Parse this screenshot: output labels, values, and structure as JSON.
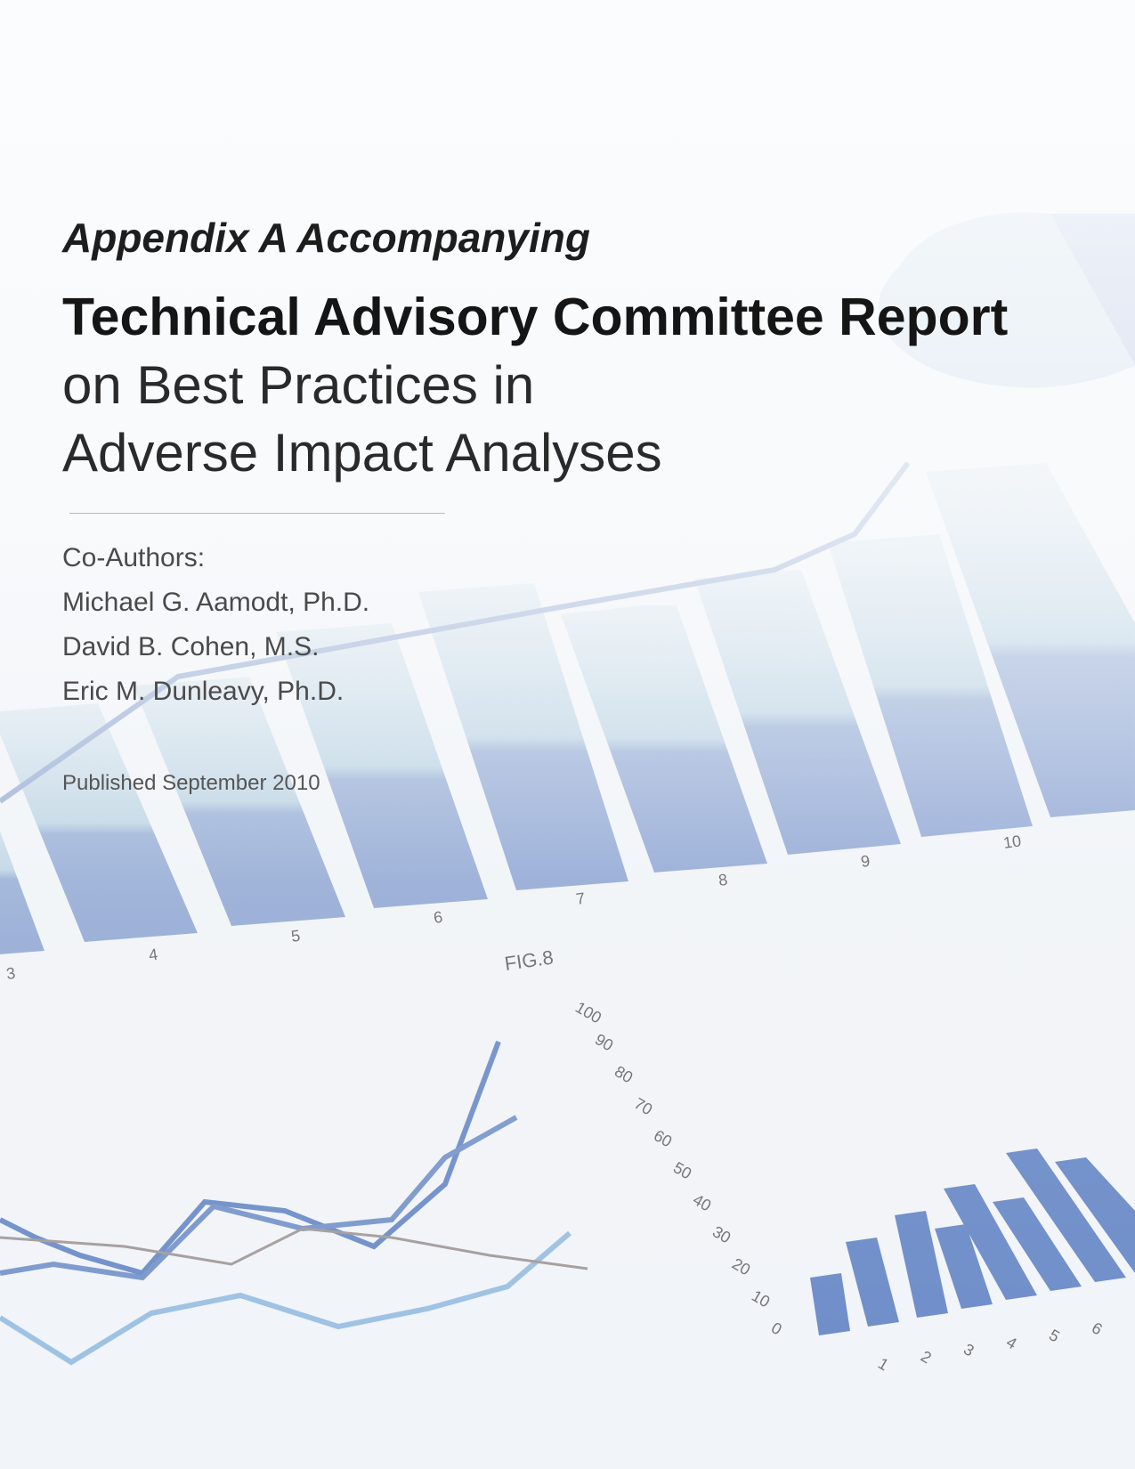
{
  "header": {
    "kicker": "Appendix A Accompanying",
    "title": "Technical Advisory Committee Report",
    "subtitle_lines": [
      "on Best Practices in",
      "Adverse Impact Analyses"
    ]
  },
  "authors": {
    "heading": "Co-Authors:",
    "names": [
      "Michael G. Aamodt, Ph.D.",
      "David B. Cohen, M.S.",
      "Eric M. Dunleavy, Ph.D."
    ]
  },
  "published": "Published September 2010",
  "background": {
    "figure_label": "FIG.8",
    "bar_axis_labels": [
      "3",
      "4",
      "5",
      "6",
      "7",
      "8",
      "9",
      "10"
    ],
    "line_axis_labels": [
      "100",
      "90",
      "80",
      "70",
      "60",
      "50",
      "40",
      "30",
      "20",
      "10",
      "0"
    ],
    "small_bar_labels": [
      "1",
      "2",
      "3",
      "4",
      "5",
      "6"
    ]
  }
}
